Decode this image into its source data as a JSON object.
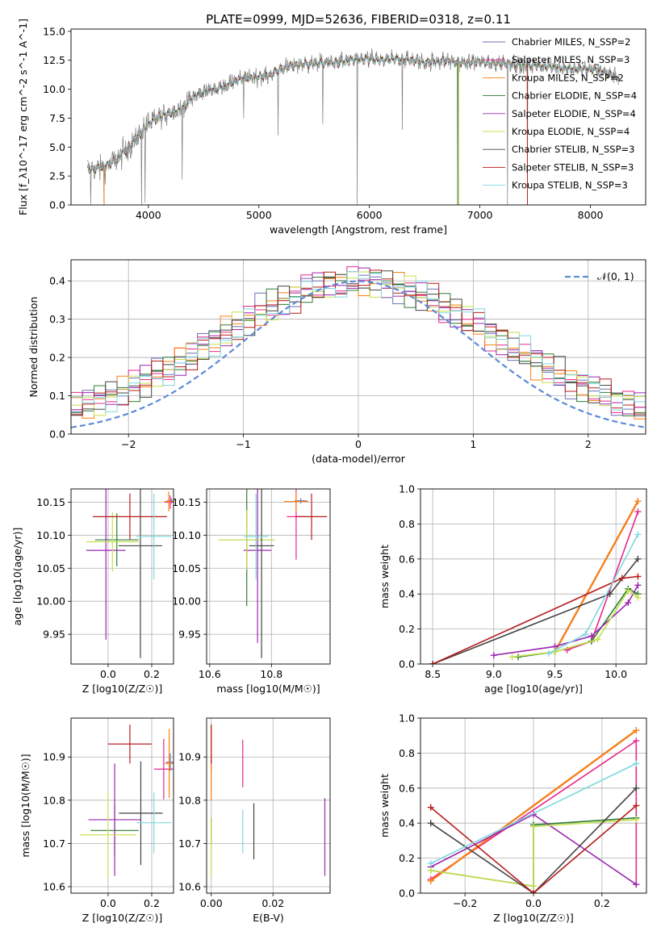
{
  "figure": {
    "title": "PLATE=0999, MJD=52636, FIBERID=0318, z=0.11"
  },
  "colors": {
    "Chabrier MILES": "#6f6fb6",
    "Salpeter MILES": "#e7298a",
    "Kroupa MILES": "#ff7f0e",
    "Chabrier ELODIE": "#2e7d32",
    "Salpeter ELODIE": "#9c27b0",
    "Kroupa ELODIE": "#c6e04e",
    "Chabrier STELIB": "#444444",
    "Salpeter STELIB": "#b71c1c",
    "Kroupa STELIB": "#7fd8e0",
    "Data": "#808080",
    "Normal": "#5b8bd6"
  },
  "chart_data": [
    {
      "id": "spectrum",
      "type": "line",
      "xlabel": "wavelength [Angstrom, rest frame]",
      "ylabel": "Flux [f_λ10^-17 erg cm^-2 s^-1 A^-1]",
      "xlim": [
        3300,
        8500
      ],
      "ylim": [
        0,
        15.2
      ],
      "xticks": [
        4000,
        5000,
        6000,
        7000,
        8000
      ],
      "yticks": [
        0.0,
        2.5,
        5.0,
        7.5,
        10.0,
        12.5,
        15.0
      ],
      "grid": false,
      "legend_position": "upper-right",
      "legend": [
        {
          "label": "Chabrier MILES, N_SSP=2",
          "color_key": "Chabrier MILES"
        },
        {
          "label": "Salpeter MILES, N_SSP=3",
          "color_key": "Salpeter MILES"
        },
        {
          "label": "Kroupa MILES, N_SSP=2",
          "color_key": "Kroupa MILES"
        },
        {
          "label": "Chabrier ELODIE, N_SSP=4",
          "color_key": "Chabrier ELODIE"
        },
        {
          "label": "Salpeter ELODIE, N_SSP=4",
          "color_key": "Salpeter ELODIE"
        },
        {
          "label": "Kroupa ELODIE, N_SSP=4",
          "color_key": "Kroupa ELODIE"
        },
        {
          "label": "Chabrier STELIB, N_SSP=3",
          "color_key": "Chabrier STELIB"
        },
        {
          "label": "Salpeter STELIB, N_SSP=3",
          "color_key": "Salpeter STELIB"
        },
        {
          "label": "Kroupa STELIB, N_SSP=3",
          "color_key": "Kroupa STELIB"
        }
      ],
      "continuum": [
        [
          3450,
          3.0
        ],
        [
          3600,
          3.3
        ],
        [
          3700,
          3.8
        ],
        [
          3800,
          4.8
        ],
        [
          3900,
          5.8
        ],
        [
          4000,
          7.0
        ],
        [
          4100,
          7.6
        ],
        [
          4200,
          8.0
        ],
        [
          4300,
          8.3
        ],
        [
          4400,
          9.3
        ],
        [
          4500,
          9.8
        ],
        [
          4600,
          10.0
        ],
        [
          4700,
          10.3
        ],
        [
          4800,
          10.8
        ],
        [
          4900,
          11.0
        ],
        [
          5000,
          11.1
        ],
        [
          5100,
          11.2
        ],
        [
          5200,
          11.8
        ],
        [
          5300,
          12.0
        ],
        [
          5400,
          12.2
        ],
        [
          5500,
          12.2
        ],
        [
          5600,
          12.3
        ],
        [
          5700,
          12.3
        ],
        [
          5800,
          12.5
        ],
        [
          5900,
          12.6
        ],
        [
          6000,
          12.6
        ],
        [
          6100,
          12.5
        ],
        [
          6200,
          12.6
        ],
        [
          6300,
          12.6
        ],
        [
          6400,
          12.5
        ],
        [
          6500,
          12.3
        ],
        [
          6600,
          12.4
        ],
        [
          6700,
          12.5
        ],
        [
          6800,
          12.3
        ],
        [
          6900,
          12.3
        ],
        [
          7000,
          12.4
        ],
        [
          7100,
          12.2
        ],
        [
          7200,
          12.3
        ],
        [
          7300,
          12.2
        ],
        [
          7400,
          12.0
        ],
        [
          7500,
          12.1
        ],
        [
          7600,
          12.0
        ],
        [
          7700,
          11.9
        ],
        [
          7800,
          11.8
        ],
        [
          7900,
          11.8
        ],
        [
          8000,
          11.7
        ],
        [
          8100,
          11.6
        ],
        [
          8200,
          11.2
        ],
        [
          8260,
          11.0
        ]
      ],
      "spikes": [
        [
          3480,
          0.0
        ],
        [
          3600,
          0.0
        ],
        [
          3940,
          0.0
        ],
        [
          3970,
          0.2
        ],
        [
          4305,
          2.2
        ],
        [
          4861,
          7.5
        ],
        [
          5175,
          6.0
        ],
        [
          5577,
          7.0
        ],
        [
          5890,
          0.0
        ],
        [
          6300,
          6.5
        ],
        [
          6800,
          0.0
        ],
        [
          7250,
          0.0
        ],
        [
          7430,
          0.0
        ]
      ]
    },
    {
      "id": "residuals",
      "type": "line",
      "xlabel": "(data-model)/error",
      "ylabel": "Normed distribution",
      "xlim": [
        -2.5,
        2.5
      ],
      "ylim": [
        0,
        0.455
      ],
      "xticks": [
        -2,
        -1,
        0,
        1,
        2
      ],
      "yticks": [
        0.0,
        0.1,
        0.2,
        0.3,
        0.4
      ],
      "grid": true,
      "legend_position": "upper-right",
      "legend": [
        {
          "label": "𝒩(0, 1)",
          "color_key": "Normal"
        }
      ]
    },
    {
      "id": "age_vs_Z",
      "type": "scatter",
      "xlabel": "Z [log10(Z/Z☉)]",
      "ylabel": "age [log10(age/yr)]",
      "xlim": [
        -0.17,
        0.3
      ],
      "ylim": [
        9.905,
        10.17
      ],
      "xticks": [
        0.0,
        0.2
      ],
      "yticks": [
        9.95,
        10.0,
        10.05,
        10.1,
        10.15
      ],
      "grid": true,
      "points": [
        {
          "k": "Chabrier MILES",
          "x": 0.29,
          "y": 10.152,
          "xe": 0.02,
          "ye": 0.004
        },
        {
          "k": "Salpeter MILES",
          "x": 0.285,
          "y": 10.15,
          "xe": 0.025,
          "ye": 0.01
        },
        {
          "k": "Kroupa MILES",
          "x": 0.278,
          "y": 10.151,
          "xe": 0.02,
          "ye": 0.015
        },
        {
          "k": "Chabrier ELODIE",
          "x": 0.04,
          "y": 10.093,
          "xe": 0.1,
          "ye": 0.04
        },
        {
          "k": "Salpeter ELODIE",
          "x": -0.01,
          "y": 10.077,
          "xe": 0.09,
          "ye": 0.135
        },
        {
          "k": "Kroupa ELODIE",
          "x": 0.02,
          "y": 10.09,
          "xe": 0.12,
          "ye": 0.045
        },
        {
          "k": "Chabrier STELIB",
          "x": 0.148,
          "y": 10.084,
          "xe": 0.1,
          "ye": 0.17
        },
        {
          "k": "Salpeter STELIB",
          "x": 0.1,
          "y": 10.128,
          "xe": 0.17,
          "ye": 0.035
        },
        {
          "k": "Kroupa STELIB",
          "x": 0.21,
          "y": 10.098,
          "xe": 0.08,
          "ye": 0.065
        }
      ]
    },
    {
      "id": "age_vs_mass",
      "type": "scatter",
      "xlabel": "mass [log10(M/M☉)]",
      "ylabel": "",
      "xlim": [
        10.59,
        10.99
      ],
      "ylim": [
        9.905,
        10.17
      ],
      "xticks": [
        10.6,
        10.8
      ],
      "yticks": [
        9.95,
        10.0,
        10.05,
        10.1,
        10.15
      ],
      "grid": true,
      "points": [
        {
          "k": "Chabrier MILES",
          "x": 10.895,
          "y": 10.152,
          "xe": 0.02,
          "ye": 0.004
        },
        {
          "k": "Salpeter MILES",
          "x": 10.88,
          "y": 10.128,
          "xe": 0.03,
          "ye": 0.065
        },
        {
          "k": "Kroupa MILES",
          "x": 10.88,
          "y": 10.151,
          "xe": 0.04,
          "ye": 0.015
        },
        {
          "k": "Chabrier ELODIE",
          "x": 10.72,
          "y": 10.093,
          "xe": 0.09,
          "ye": 0.1
        },
        {
          "k": "Salpeter ELODIE",
          "x": 10.755,
          "y": 10.077,
          "xe": 0.045,
          "ye": 0.14
        },
        {
          "k": "Kroupa ELODIE",
          "x": 10.72,
          "y": 10.093,
          "xe": 0.09,
          "ye": 0.045
        },
        {
          "k": "Chabrier STELIB",
          "x": 10.768,
          "y": 10.084,
          "xe": 0.04,
          "ye": 0.17
        },
        {
          "k": "Salpeter STELIB",
          "x": 10.93,
          "y": 10.128,
          "xe": 0.05,
          "ye": 0.035
        },
        {
          "k": "Kroupa STELIB",
          "x": 10.75,
          "y": 10.098,
          "xe": 0.04,
          "ye": 0.065
        }
      ]
    },
    {
      "id": "weight_vs_age",
      "type": "line",
      "xlabel": "age [log10(age/yr)]",
      "ylabel": "mass weight",
      "xlim": [
        8.4,
        10.25
      ],
      "ylim": [
        0,
        1.0
      ],
      "xticks": [
        8.5,
        9.0,
        9.5,
        10.0
      ],
      "yticks": [
        0.0,
        0.2,
        0.4,
        0.6,
        0.8,
        1.0
      ],
      "grid": true,
      "series": [
        {
          "k": "Chabrier MILES",
          "x": [
            9.5,
            10.18
          ],
          "y": [
            0.07,
            0.93
          ]
        },
        {
          "k": "Salpeter MILES",
          "x": [
            9.6,
            9.8,
            10.18
          ],
          "y": [
            0.08,
            0.13,
            0.87
          ]
        },
        {
          "k": "Kroupa MILES",
          "x": [
            9.5,
            10.18
          ],
          "y": [
            0.07,
            0.93
          ]
        },
        {
          "k": "Chabrier ELODIE",
          "x": [
            9.2,
            9.5,
            9.8,
            10.1,
            10.18
          ],
          "y": [
            0.04,
            0.07,
            0.13,
            0.43,
            0.4
          ]
        },
        {
          "k": "Salpeter ELODIE",
          "x": [
            9.0,
            9.5,
            9.8,
            10.1,
            10.18
          ],
          "y": [
            0.05,
            0.1,
            0.16,
            0.35,
            0.45
          ]
        },
        {
          "k": "Kroupa ELODIE",
          "x": [
            9.15,
            9.5,
            9.85,
            10.1,
            10.18
          ],
          "y": [
            0.04,
            0.07,
            0.14,
            0.42,
            0.38
          ]
        },
        {
          "k": "Chabrier STELIB",
          "x": [
            8.5,
            9.95,
            10.18
          ],
          "y": [
            0.0,
            0.4,
            0.6
          ]
        },
        {
          "k": "Salpeter STELIB",
          "x": [
            8.5,
            10.05,
            10.18
          ],
          "y": [
            0.0,
            0.49,
            0.5
          ]
        },
        {
          "k": "Kroupa STELIB",
          "x": [
            9.45,
            9.75,
            10.18
          ],
          "y": [
            0.06,
            0.17,
            0.74
          ]
        }
      ]
    },
    {
      "id": "mass_vs_Z",
      "type": "scatter",
      "xlabel": "Z [log10(Z/Z☉)]",
      "ylabel": "mass [log10(M/M☉)]",
      "xlim": [
        -0.17,
        0.3
      ],
      "ylim": [
        10.585,
        10.99
      ],
      "xticks": [
        0.0,
        0.2
      ],
      "yticks": [
        10.6,
        10.7,
        10.8,
        10.9
      ],
      "grid": true,
      "points": [
        {
          "k": "Chabrier MILES",
          "x": 0.285,
          "y": 10.888,
          "xe": 0.02,
          "ye": 0.02
        },
        {
          "k": "Salpeter MILES",
          "x": 0.255,
          "y": 10.872,
          "xe": 0.045,
          "ye": 0.07
        },
        {
          "k": "Kroupa MILES",
          "x": 0.28,
          "y": 10.885,
          "xe": 0.02,
          "ye": 0.08
        },
        {
          "k": "Chabrier ELODIE",
          "x": 0.03,
          "y": 10.73,
          "xe": 0.11,
          "ye": 0.06
        },
        {
          "k": "Salpeter ELODIE",
          "x": 0.03,
          "y": 10.755,
          "xe": 0.12,
          "ye": 0.13
        },
        {
          "k": "Kroupa ELODIE",
          "x": 0.0,
          "y": 10.72,
          "xe": 0.13,
          "ye": 0.1
        },
        {
          "k": "Chabrier STELIB",
          "x": 0.15,
          "y": 10.77,
          "xe": 0.1,
          "ye": 0.12
        },
        {
          "k": "Salpeter STELIB",
          "x": 0.1,
          "y": 10.93,
          "xe": 0.1,
          "ye": 0.045
        },
        {
          "k": "Kroupa STELIB",
          "x": 0.21,
          "y": 10.748,
          "xe": 0.08,
          "ye": 0.07
        }
      ]
    },
    {
      "id": "mass_vs_ebv",
      "type": "scatter",
      "xlabel": "E(B-V)",
      "ylabel": "",
      "xlim": [
        -0.0015,
        0.0385
      ],
      "ylim": [
        10.585,
        10.99
      ],
      "xticks": [
        0.0,
        0.02
      ],
      "yticks": [
        10.6,
        10.7,
        10.8,
        10.9
      ],
      "grid": true,
      "points": [
        {
          "k": "Chabrier MILES",
          "x": 0.0,
          "y": 10.888,
          "xe": 0,
          "ye": 0.02
        },
        {
          "k": "Salpeter MILES",
          "x": 0.0102,
          "y": 10.885,
          "xe": 0,
          "ye": 0.055
        },
        {
          "k": "Kroupa MILES",
          "x": 0.0,
          "y": 10.885,
          "xe": 0,
          "ye": 0.085
        },
        {
          "k": "Chabrier ELODIE",
          "x": 0.0,
          "y": 10.73,
          "xe": 0,
          "ye": 0.03
        },
        {
          "k": "Salpeter ELODIE",
          "x": 0.0368,
          "y": 10.715,
          "xe": 0,
          "ye": 0.09
        },
        {
          "k": "Kroupa ELODIE",
          "x": 0.0,
          "y": 10.69,
          "xe": 0,
          "ye": 0.07
        },
        {
          "k": "Chabrier STELIB",
          "x": 0.0138,
          "y": 10.728,
          "xe": 0,
          "ye": 0.065
        },
        {
          "k": "Salpeter STELIB",
          "x": 0.0,
          "y": 10.93,
          "xe": 0,
          "ye": 0.045
        },
        {
          "k": "Kroupa STELIB",
          "x": 0.0102,
          "y": 10.728,
          "xe": 0,
          "ye": 0.05
        }
      ]
    },
    {
      "id": "weight_vs_Z",
      "type": "line",
      "xlabel": "Z [log10(Z/Z☉)]",
      "ylabel": "mass weight",
      "xlim": [
        -0.33,
        0.33
      ],
      "ylim": [
        0,
        1.0
      ],
      "xticks": [
        -0.2,
        0.0,
        0.2
      ],
      "yticks": [
        0.0,
        0.2,
        0.4,
        0.6,
        0.8,
        1.0
      ],
      "grid": true,
      "series": [
        {
          "k": "Chabrier MILES",
          "x": [
            -0.3,
            0.3
          ],
          "y": [
            0.07,
            0.93
          ]
        },
        {
          "k": "Salpeter MILES",
          "x": [
            -0.3,
            0.3,
            0.3
          ],
          "y": [
            0.08,
            0.87,
            0.05
          ]
        },
        {
          "k": "Kroupa MILES",
          "x": [
            -0.3,
            0.3
          ],
          "y": [
            0.07,
            0.93
          ]
        },
        {
          "k": "Chabrier ELODIE",
          "x": [
            -0.3,
            0.0,
            0.0,
            0.3
          ],
          "y": [
            0.13,
            0.04,
            0.39,
            0.43
          ]
        },
        {
          "k": "Salpeter ELODIE",
          "x": [
            -0.3,
            0.0,
            0.3
          ],
          "y": [
            0.15,
            0.45,
            0.05
          ]
        },
        {
          "k": "Kroupa ELODIE",
          "x": [
            -0.3,
            0.0,
            0.0,
            0.3
          ],
          "y": [
            0.13,
            0.04,
            0.38,
            0.42
          ]
        },
        {
          "k": "Chabrier STELIB",
          "x": [
            -0.3,
            0.0,
            0.3
          ],
          "y": [
            0.4,
            0.0,
            0.6
          ]
        },
        {
          "k": "Salpeter STELIB",
          "x": [
            -0.3,
            0.0,
            0.3
          ],
          "y": [
            0.49,
            0.0,
            0.5
          ]
        },
        {
          "k": "Kroupa STELIB",
          "x": [
            -0.3,
            0.3
          ],
          "y": [
            0.17,
            0.74
          ]
        }
      ]
    }
  ]
}
